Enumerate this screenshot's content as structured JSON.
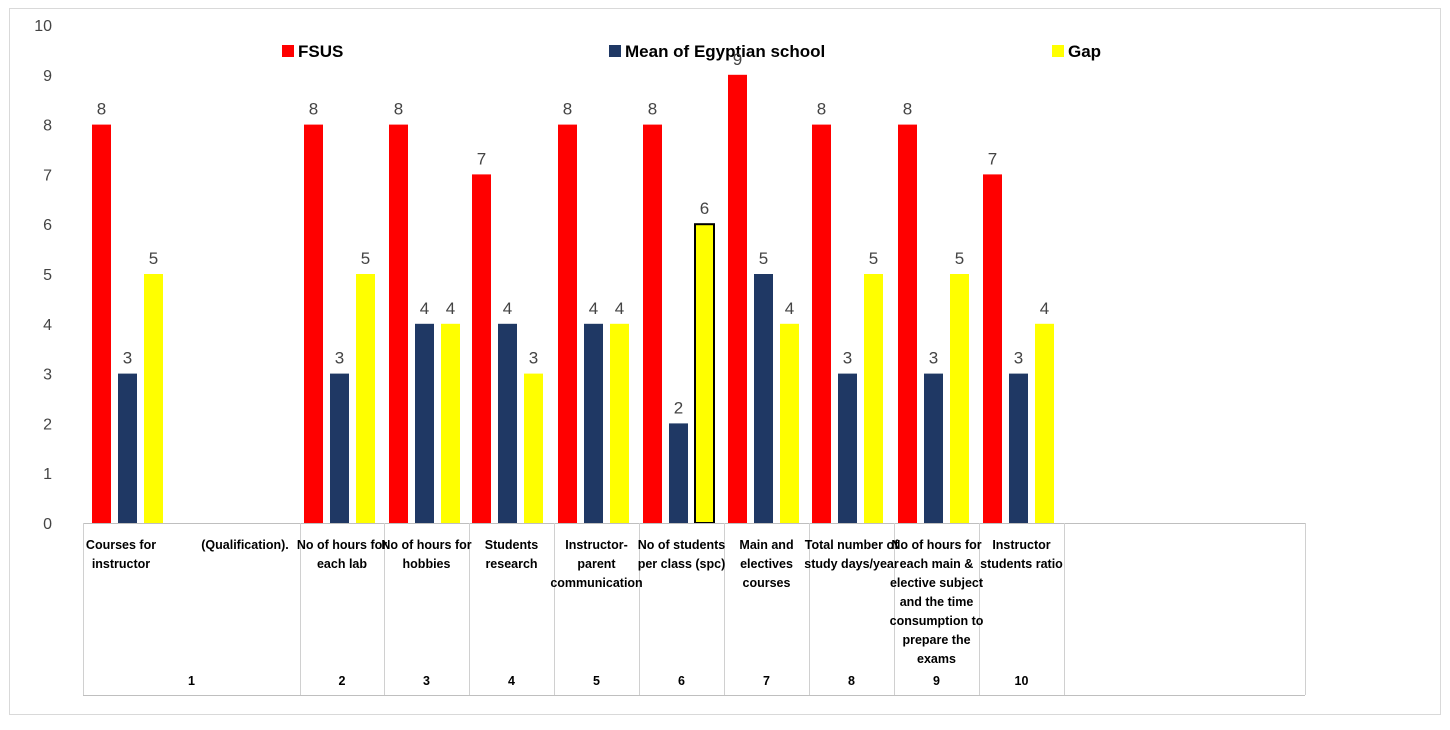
{
  "chart_data": {
    "type": "bar",
    "title": "",
    "xlabel": "",
    "ylabel": "",
    "ylim": [
      0,
      10
    ],
    "yticks": [
      "0",
      "1",
      "2",
      "3",
      "4",
      "5",
      "6",
      "7",
      "8",
      "9",
      "10"
    ],
    "grid": false,
    "legend_position": "top",
    "categories": [
      {
        "index": "1",
        "lines": [
          "Courses for",
          "instructor"
        ],
        "extra": "(Qualification)."
      },
      {
        "index": "2",
        "lines": [
          "No of hours for",
          "each lab"
        ]
      },
      {
        "index": "3",
        "lines": [
          "No of hours for",
          "hobbies"
        ]
      },
      {
        "index": "4",
        "lines": [
          "Students",
          "research"
        ]
      },
      {
        "index": "5",
        "lines": [
          "Instructor-",
          "parent",
          "communication"
        ]
      },
      {
        "index": "6",
        "lines": [
          "No of students",
          "per class (spc)"
        ]
      },
      {
        "index": "7",
        "lines": [
          "Main and",
          "electives",
          "courses"
        ]
      },
      {
        "index": "8",
        "lines": [
          "Total number of",
          "study days/year"
        ]
      },
      {
        "index": "9",
        "lines": [
          "No of hours for",
          "each main &",
          "elective subject",
          "and the time",
          "consumption to",
          "prepare the",
          "exams"
        ]
      },
      {
        "index": "10",
        "lines": [
          "Instructor",
          "students ratio"
        ]
      }
    ],
    "series": [
      {
        "name": "FSUS",
        "color": "#FF0000",
        "values": [
          8,
          8,
          8,
          7,
          8,
          8,
          9,
          8,
          8,
          7
        ]
      },
      {
        "name": "Mean of Egyptian school",
        "color": "#1F3864",
        "values": [
          3,
          3,
          4,
          4,
          4,
          2,
          5,
          3,
          3,
          3
        ]
      },
      {
        "name": "Gap",
        "color": "#FFFF00",
        "values": [
          5,
          5,
          4,
          3,
          4,
          6,
          4,
          5,
          5,
          4
        ]
      }
    ],
    "data_labels": [
      [
        "8",
        "8",
        "8",
        "7",
        "8",
        "8",
        "9",
        "8",
        "8",
        "7"
      ],
      [
        "3",
        "3",
        "4",
        "4",
        "4",
        "2",
        "5",
        "3",
        "3",
        "3"
      ],
      [
        "5",
        "5",
        "4",
        "3",
        "4",
        "6",
        "4",
        "5",
        "5",
        "4"
      ]
    ],
    "highlighted_bar": {
      "series": 2,
      "category": 5
    }
  }
}
